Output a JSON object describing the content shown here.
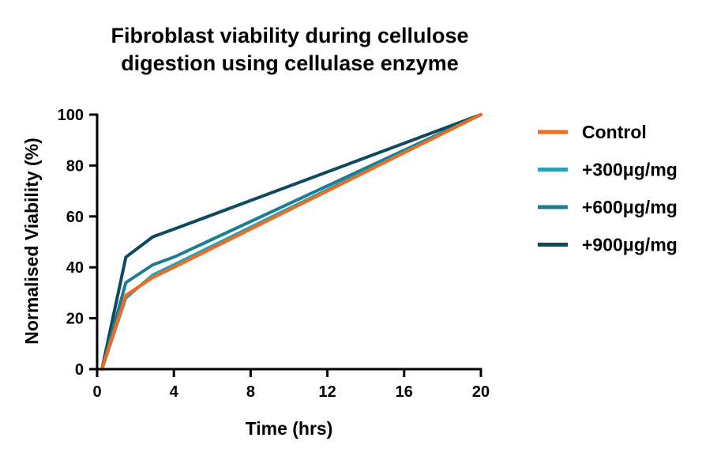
{
  "chart_data": {
    "type": "line",
    "title_lines": [
      "Fibroblast viability during cellulose",
      "digestion using cellulase enzyme"
    ],
    "xlabel": "Time (hrs)",
    "ylabel": "Normalised Viability (%)",
    "xlim": [
      0,
      20
    ],
    "ylim": [
      0,
      100
    ],
    "xticks": [
      0,
      4,
      8,
      12,
      16,
      20
    ],
    "yticks": [
      0,
      20,
      40,
      60,
      80,
      100
    ],
    "grid": false,
    "legend_position": "right",
    "series": [
      {
        "name": "Control",
        "color": "#f26b1d",
        "x": [
          0.25,
          1.5,
          2.9,
          4,
          20
        ],
        "y": [
          0,
          29,
          36,
          40,
          100
        ]
      },
      {
        "name": "+300μg/mg",
        "color": "#2b9fb7",
        "x": [
          0.25,
          1.5,
          2.9,
          4,
          20
        ],
        "y": [
          0,
          28,
          37,
          41,
          100
        ]
      },
      {
        "name": "+600μg/mg",
        "color": "#1d7c92",
        "x": [
          0.25,
          1.5,
          2.9,
          4,
          20
        ],
        "y": [
          0,
          34,
          41,
          44,
          100
        ]
      },
      {
        "name": "+900μg/mg",
        "color": "#0e4a5c",
        "x": [
          0.25,
          1.5,
          2.9,
          4,
          20
        ],
        "y": [
          0,
          44,
          52,
          55,
          100
        ]
      }
    ]
  }
}
